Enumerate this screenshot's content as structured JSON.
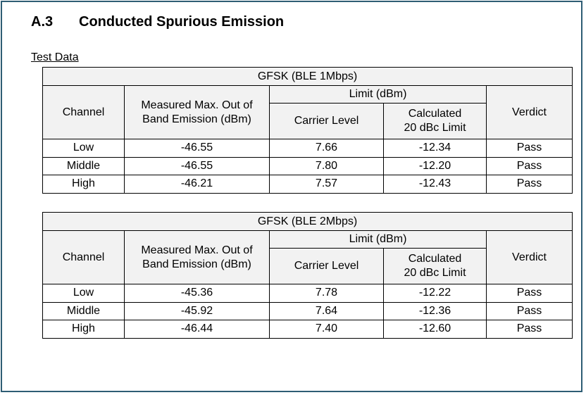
{
  "section": {
    "number": "A.3",
    "title": "Conducted Spurious Emission"
  },
  "subheading": "Test Data",
  "tables": [
    {
      "title": "GFSK (BLE 1Mbps)",
      "headers": {
        "channel": "Channel",
        "measured_line1": "Measured Max. Out of",
        "measured_line2": "Band Emission (dBm)",
        "limit": "Limit (dBm)",
        "carrier": "Carrier Level",
        "calc_line1": "Calculated",
        "calc_line2": "20 dBc Limit",
        "verdict": "Verdict"
      },
      "rows": [
        {
          "channel": "Low",
          "measured": "-46.55",
          "carrier": "7.66",
          "limit": "-12.34",
          "verdict": "Pass"
        },
        {
          "channel": "Middle",
          "measured": "-46.55",
          "carrier": "7.80",
          "limit": "-12.20",
          "verdict": "Pass"
        },
        {
          "channel": "High",
          "measured": "-46.21",
          "carrier": "7.57",
          "limit": "-12.43",
          "verdict": "Pass"
        }
      ]
    },
    {
      "title": "GFSK (BLE 2Mbps)",
      "headers": {
        "channel": "Channel",
        "measured_line1": "Measured Max. Out of",
        "measured_line2": "Band Emission (dBm)",
        "limit": "Limit (dBm)",
        "carrier": "Carrier Level",
        "calc_line1": "Calculated",
        "calc_line2": "20 dBc Limit",
        "verdict": "Verdict"
      },
      "rows": [
        {
          "channel": "Low",
          "measured": "-45.36",
          "carrier": "7.78",
          "limit": "-12.22",
          "verdict": "Pass"
        },
        {
          "channel": "Middle",
          "measured": "-45.92",
          "carrier": "7.64",
          "limit": "-12.36",
          "verdict": "Pass"
        },
        {
          "channel": "High",
          "measured": "-46.44",
          "carrier": "7.40",
          "limit": "-12.60",
          "verdict": "Pass"
        }
      ]
    }
  ]
}
